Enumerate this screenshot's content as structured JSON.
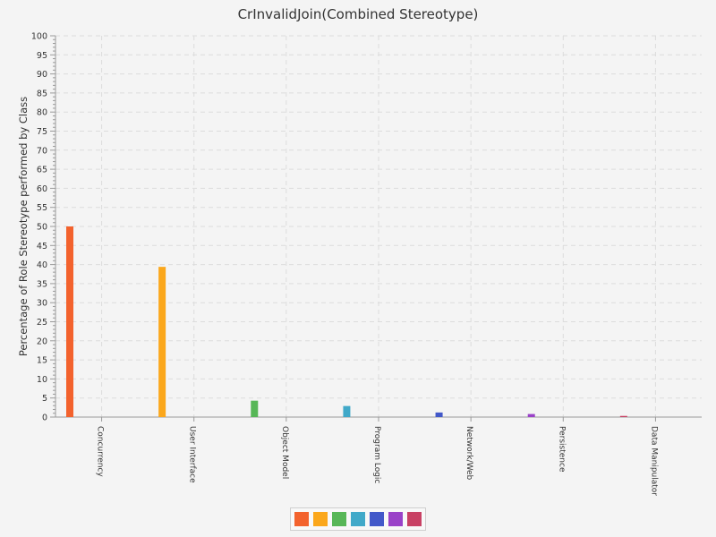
{
  "chart_data": {
    "type": "bar",
    "title": "CrInvalidJoin(Combined Stereotype)",
    "xlabel": "",
    "ylabel": "Percentage of Role Stereotype performed by Class",
    "ylim": [
      0,
      100
    ],
    "ytick_step": 5,
    "grid": true,
    "legend_position": "bottom-center",
    "categories": [
      "Concurrency",
      "User Interface",
      "Object Model",
      "Program Logic",
      "Network/Web",
      "Persistence",
      "Data Manipulator"
    ],
    "values": [
      50,
      39.4,
      4.3,
      2.9,
      1.2,
      0.8,
      0.3
    ],
    "colors": [
      "#f3622d",
      "#fba71b",
      "#57b757",
      "#41a9c9",
      "#4258c9",
      "#9a42c8",
      "#c84164"
    ]
  }
}
